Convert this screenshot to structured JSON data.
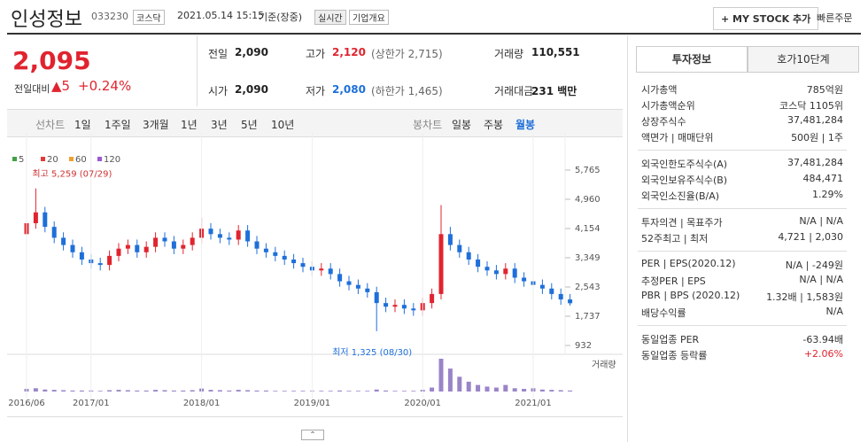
{
  "header": {
    "name": "인성정보",
    "code": "033230",
    "market": "코스닥",
    "datetime": "2021.05.14 15:15",
    "basis": "기준(장중)",
    "realtime": "실시간",
    "company": "기업개요",
    "mystock": "+ MY STOCK 추가",
    "quick": "빠른주문"
  },
  "price": {
    "current": "2,095",
    "change_label": "전일대비",
    "change": "▲5",
    "rate": "+0.24%"
  },
  "quotes": [
    [
      "전일",
      "2,090",
      ""
    ],
    [
      "고가",
      "2,120",
      "(상한가 2,715)"
    ],
    [
      "거래량",
      "110,551",
      ""
    ],
    [
      "시가",
      "2,090",
      ""
    ],
    [
      "저가",
      "2,080",
      "(하한가 1,465)"
    ],
    [
      "거래대금",
      "231 백만",
      ""
    ]
  ],
  "periods": {
    "line_label": "선차트",
    "line": [
      "1일",
      "1주일",
      "3개월",
      "1년",
      "3년",
      "5년",
      "10년"
    ],
    "candle_label": "봉차트",
    "candle": [
      "일봉",
      "주봉",
      "월봉"
    ]
  },
  "chart_data": {
    "type": "candlestick",
    "legend": [
      {
        "name": "5",
        "color": "#43a047"
      },
      {
        "name": "20",
        "color": "#e53935"
      },
      {
        "name": "60",
        "color": "#f0a030"
      },
      {
        "name": "120",
        "color": "#9b59d0"
      }
    ],
    "max_label": "최고 5,259 (07/29)",
    "min_label": "최저 1,325 (08/30)",
    "volume_label": "거래량",
    "categories": [
      "2016/06",
      null,
      null,
      null,
      null,
      null,
      null,
      "2017/01",
      null,
      null,
      null,
      null,
      null,
      null,
      null,
      null,
      null,
      null,
      null,
      "2018/01",
      null,
      null,
      null,
      null,
      null,
      null,
      null,
      null,
      null,
      null,
      null,
      "2019/01",
      null,
      null,
      null,
      null,
      null,
      null,
      null,
      null,
      null,
      null,
      null,
      "2020/01",
      null,
      null,
      null,
      null,
      null,
      null,
      null,
      null,
      null,
      null,
      null,
      "2021/01",
      null,
      null,
      null,
      null
    ],
    "candles": [
      [
        4000,
        4450,
        3850,
        4300
      ],
      [
        4300,
        5259,
        4150,
        4600
      ],
      [
        4600,
        4750,
        4050,
        4200
      ],
      [
        4200,
        4350,
        3750,
        3900
      ],
      [
        3900,
        4050,
        3550,
        3700
      ],
      [
        3700,
        3850,
        3350,
        3500
      ],
      [
        3500,
        3650,
        3150,
        3300
      ],
      [
        3300,
        3450,
        3050,
        3200
      ],
      [
        3200,
        3350,
        3000,
        3150
      ],
      [
        3150,
        3550,
        3000,
        3400
      ],
      [
        3400,
        3750,
        3250,
        3600
      ],
      [
        3600,
        3850,
        3450,
        3700
      ],
      [
        3700,
        3850,
        3350,
        3500
      ],
      [
        3500,
        3800,
        3350,
        3650
      ],
      [
        3650,
        4050,
        3500,
        3900
      ],
      [
        3900,
        4050,
        3650,
        3800
      ],
      [
        3800,
        3950,
        3450,
        3600
      ],
      [
        3600,
        3850,
        3450,
        3700
      ],
      [
        3700,
        4050,
        3550,
        3900
      ],
      [
        3900,
        4450,
        3750,
        4150
      ],
      [
        4150,
        4300,
        3850,
        4000
      ],
      [
        4000,
        4150,
        3750,
        3900
      ],
      [
        3900,
        4050,
        3700,
        3850
      ],
      [
        3850,
        4250,
        3700,
        4100
      ],
      [
        4100,
        4250,
        3650,
        3800
      ],
      [
        3800,
        3950,
        3450,
        3600
      ],
      [
        3600,
        3750,
        3350,
        3500
      ],
      [
        3500,
        3650,
        3250,
        3400
      ],
      [
        3400,
        3550,
        3150,
        3300
      ],
      [
        3300,
        3450,
        3050,
        3200
      ],
      [
        3200,
        3350,
        2950,
        3100
      ],
      [
        3100,
        3250,
        2850,
        3000
      ],
      [
        3000,
        3200,
        2850,
        3050
      ],
      [
        3050,
        3200,
        2750,
        2900
      ],
      [
        2900,
        3050,
        2550,
        2700
      ],
      [
        2700,
        2850,
        2450,
        2600
      ],
      [
        2600,
        2750,
        2350,
        2500
      ],
      [
        2500,
        2650,
        2250,
        2400
      ],
      [
        2400,
        2550,
        1325,
        2100
      ],
      [
        2100,
        2250,
        1850,
        2000
      ],
      [
        2000,
        2200,
        1850,
        2050
      ],
      [
        2050,
        2200,
        1800,
        1950
      ],
      [
        1950,
        2100,
        1750,
        1900
      ],
      [
        1900,
        2250,
        1750,
        2100
      ],
      [
        2100,
        2500,
        1950,
        2350
      ],
      [
        2350,
        4800,
        2200,
        4000
      ],
      [
        4000,
        4200,
        3550,
        3700
      ],
      [
        3700,
        3850,
        3350,
        3500
      ],
      [
        3500,
        3650,
        3150,
        3300
      ],
      [
        3300,
        3450,
        2950,
        3100
      ],
      [
        3100,
        3250,
        2850,
        3000
      ],
      [
        3000,
        3150,
        2750,
        2900
      ],
      [
        2900,
        3200,
        2750,
        3050
      ],
      [
        3050,
        3200,
        2650,
        2800
      ],
      [
        2800,
        2950,
        2550,
        2700
      ],
      [
        2700,
        2850,
        2450,
        2600
      ],
      [
        2600,
        2750,
        2350,
        2500
      ],
      [
        2500,
        2650,
        2200,
        2350
      ],
      [
        2350,
        2500,
        2050,
        2200
      ],
      [
        2200,
        2350,
        2030,
        2095
      ]
    ],
    "volume": [
      8,
      10,
      6,
      5,
      4,
      3,
      3,
      3,
      2,
      4,
      5,
      4,
      3,
      3,
      5,
      4,
      3,
      3,
      4,
      9,
      5,
      4,
      3,
      5,
      4,
      3,
      3,
      2,
      2,
      2,
      2,
      2,
      2,
      2,
      3,
      2,
      2,
      2,
      6,
      3,
      2,
      2,
      2,
      5,
      12,
      100,
      70,
      45,
      30,
      20,
      15,
      12,
      20,
      10,
      8,
      10,
      6,
      5,
      4,
      3
    ],
    "ylim": [
      932,
      5765
    ],
    "yticks": [
      932,
      {
        "value": 1737,
        "label": "1,737"
      },
      {
        "value": 2543,
        "label": "2,543"
      },
      {
        "value": 3349,
        "label": "3,349"
      },
      {
        "value": 4154,
        "label": "4,154"
      },
      {
        "value": 4960,
        "label": "4,960"
      },
      {
        "value": 5765,
        "label": "5,765"
      }
    ],
    "vlim": [
      0,
      100
    ],
    "up_color": "#e0242f",
    "down_color": "#1e6fd9"
  },
  "info": {
    "tabs": [
      "투자정보",
      "호가10단계"
    ],
    "sections": [
      [
        [
          "시가총액",
          "785억원"
        ],
        [
          "시가총액순위",
          "코스닥 1105위"
        ],
        [
          "상장주식수",
          "37,481,284"
        ],
        [
          "액면가 | 매매단위",
          "500원 | 1주"
        ]
      ],
      [
        [
          "외국인한도주식수(A)",
          "37,481,284"
        ],
        [
          "외국인보유주식수(B)",
          "484,471"
        ],
        [
          "외국인소진율(B/A)",
          "1.29%"
        ]
      ],
      [
        [
          "투자의견 | 목표주가",
          "N/A | N/A"
        ],
        [
          "52주최고 | 최저",
          "4,721 | 2,030"
        ]
      ],
      [
        [
          "PER | EPS(2020.12)",
          "N/A | -249원"
        ],
        [
          "추정PER | EPS",
          "N/A | N/A"
        ],
        [
          "PBR | BPS (2020.12)",
          "1.32배 | 1,583원"
        ],
        [
          "배당수익률",
          "N/A"
        ]
      ],
      [
        [
          "동일업종 PER",
          "-63.94배"
        ],
        [
          "동일업종 등락률",
          "+2.06%"
        ]
      ]
    ]
  }
}
